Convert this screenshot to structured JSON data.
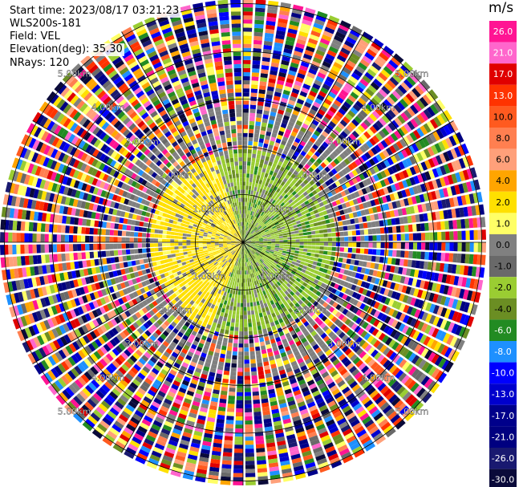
{
  "info": {
    "start_time": "Start time: 2023/08/17 03:21:23",
    "instrument": "WLS200s-181",
    "field": "Field: VEL",
    "elevation": "Elevation(deg): 35.30",
    "nrays": "NRays: 120"
  },
  "range_labels": [
    "1.00km",
    "2.00km",
    "3.00km",
    "4.00km",
    "5.00km",
    "6.00km",
    "7.00km"
  ],
  "colorbar": {
    "unit": "m/s",
    "ticks": [
      "26.0",
      "21.0",
      "17.0",
      "13.0",
      "10.0",
      "8.0",
      "6.0",
      "4.0",
      "2.0",
      "1.0",
      "0.0",
      "-1.0",
      "-2.0",
      "-4.0",
      "-6.0",
      "-8.0",
      "-10.0",
      "-13.0",
      "-17.0",
      "-21.0",
      "-26.0",
      "-30.0"
    ],
    "colors": [
      "#ff1493",
      "#ff66cc",
      "#e00000",
      "#ff3300",
      "#ff5a1f",
      "#ff7f50",
      "#ffa07a",
      "#ffa500",
      "#ffe000",
      "#ffff66",
      "#808080",
      "#696969",
      "#9acd32",
      "#6b8e23",
      "#228b22",
      "#1e90ff",
      "#0000ff",
      "#0000cd",
      "#00008b",
      "#000080",
      "#191970",
      "#0a0a3a"
    ]
  }
}
